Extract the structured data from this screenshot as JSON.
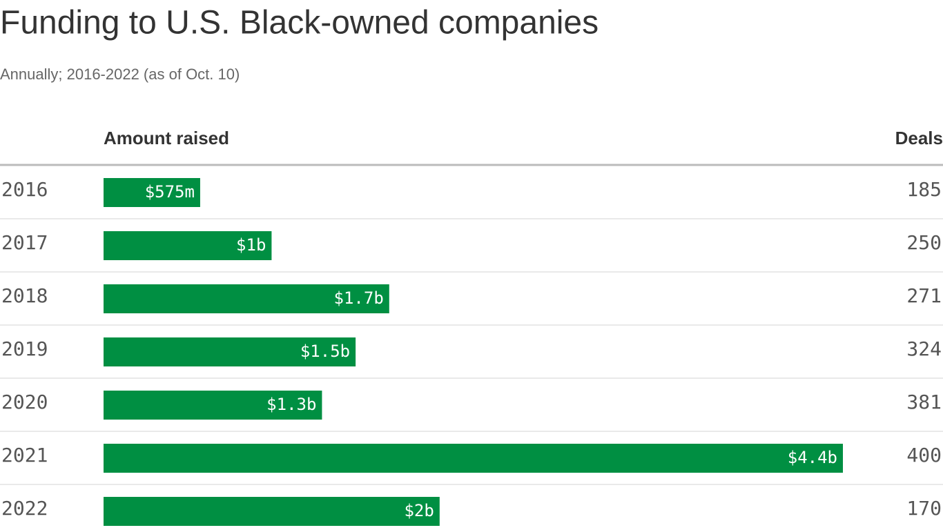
{
  "chart_data": {
    "type": "bar",
    "title": "Funding to U.S. Black-owned companies",
    "subtitle": "Annually; 2016-2022 (as of Oct. 10)",
    "value_header": "Amount raised",
    "deals_header": "Deals",
    "categories": [
      "2016",
      "2017",
      "2018",
      "2019",
      "2020",
      "2021",
      "2022"
    ],
    "values": [
      575000000,
      1000000000,
      1700000000,
      1500000000,
      1300000000,
      4400000000,
      2000000000
    ],
    "value_labels": [
      "$575m",
      "$1b",
      "$1.7b",
      "$1.5b",
      "$1.3b",
      "$4.4b",
      "$2b"
    ],
    "deals": [
      185,
      250,
      271,
      324,
      381,
      400,
      170
    ],
    "color": "#008f42"
  }
}
